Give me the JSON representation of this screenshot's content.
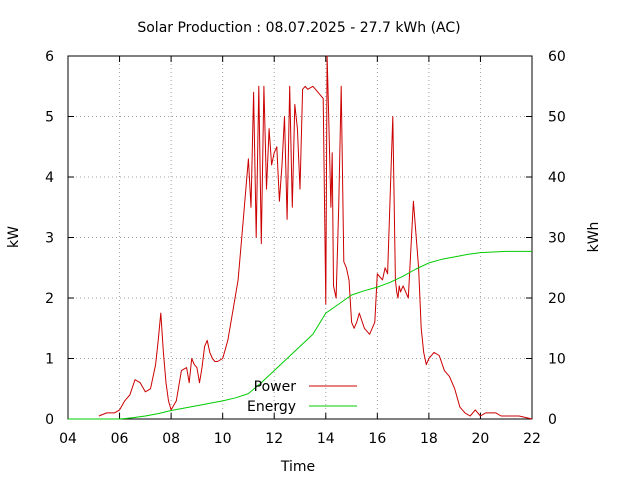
{
  "chart_data": {
    "type": "line",
    "title": "Solar Production : 08.07.2025 - 27.7 kWh (AC)",
    "xlabel": "Time",
    "ylabel": "kW",
    "y2label": "kWh",
    "xlim": [
      4,
      22
    ],
    "ylim": [
      0,
      6
    ],
    "y2lim": [
      0,
      60
    ],
    "xticks": [
      "04",
      "06",
      "08",
      "10",
      "12",
      "14",
      "16",
      "18",
      "20",
      "22"
    ],
    "yticks": [
      "0",
      "1",
      "2",
      "3",
      "4",
      "5",
      "6"
    ],
    "y2ticks": [
      "0",
      "10",
      "20",
      "30",
      "40",
      "50",
      "60"
    ],
    "grid": true,
    "legend_position": "bottom-center",
    "series": [
      {
        "name": "Power",
        "axis": "left",
        "color": "#cc0000",
        "x": [
          5.2,
          5.5,
          5.8,
          6.0,
          6.2,
          6.4,
          6.6,
          6.8,
          7.0,
          7.2,
          7.4,
          7.5,
          7.6,
          7.7,
          7.8,
          7.9,
          8.0,
          8.2,
          8.4,
          8.6,
          8.7,
          8.8,
          8.9,
          9.0,
          9.1,
          9.2,
          9.3,
          9.4,
          9.5,
          9.6,
          9.7,
          9.8,
          10.0,
          10.2,
          10.4,
          10.6,
          10.8,
          11.0,
          11.1,
          11.2,
          11.3,
          11.4,
          11.5,
          11.6,
          11.7,
          11.8,
          11.9,
          12.0,
          12.1,
          12.2,
          12.3,
          12.4,
          12.5,
          12.6,
          12.7,
          12.8,
          12.9,
          13.0,
          13.1,
          13.2,
          13.3,
          13.5,
          13.7,
          13.9,
          14.0,
          14.05,
          14.1,
          14.2,
          14.25,
          14.3,
          14.4,
          14.5,
          14.6,
          14.7,
          14.8,
          14.9,
          15.0,
          15.1,
          15.2,
          15.3,
          15.5,
          15.7,
          15.9,
          16.0,
          16.2,
          16.3,
          16.4,
          16.5,
          16.6,
          16.7,
          16.75,
          16.8,
          16.85,
          16.9,
          17.0,
          17.2,
          17.4,
          17.6,
          17.7,
          17.8,
          17.9,
          18.0,
          18.2,
          18.4,
          18.6,
          18.8,
          19.0,
          19.2,
          19.4,
          19.6,
          19.8,
          20.0,
          20.2,
          20.4,
          20.6,
          20.8,
          21.0,
          21.5,
          22.0
        ],
        "y": [
          0.05,
          0.1,
          0.1,
          0.15,
          0.3,
          0.4,
          0.65,
          0.6,
          0.45,
          0.5,
          0.9,
          1.3,
          1.75,
          1.1,
          0.6,
          0.3,
          0.15,
          0.3,
          0.8,
          0.85,
          0.6,
          1.0,
          0.9,
          0.85,
          0.6,
          0.85,
          1.2,
          1.3,
          1.1,
          1.0,
          0.95,
          0.95,
          1.0,
          1.3,
          1.8,
          2.3,
          3.3,
          4.3,
          3.5,
          5.4,
          3.0,
          5.5,
          2.9,
          5.5,
          3.8,
          4.8,
          4.2,
          4.4,
          4.5,
          3.6,
          4.2,
          5.0,
          3.3,
          5.5,
          3.5,
          5.2,
          4.8,
          3.8,
          5.45,
          5.5,
          5.45,
          5.5,
          5.4,
          5.3,
          1.9,
          6.0,
          5.2,
          3.5,
          4.4,
          2.2,
          2.0,
          3.5,
          5.5,
          2.6,
          2.5,
          2.3,
          1.6,
          1.5,
          1.6,
          1.75,
          1.5,
          1.4,
          1.6,
          2.4,
          2.3,
          2.5,
          2.4,
          3.7,
          5.0,
          2.3,
          2.1,
          2.0,
          2.2,
          2.1,
          2.2,
          2.0,
          3.6,
          2.5,
          1.5,
          1.1,
          0.9,
          1.0,
          1.1,
          1.05,
          0.8,
          0.7,
          0.5,
          0.2,
          0.1,
          0.05,
          0.15,
          0.05,
          0.1,
          0.1,
          0.1,
          0.05,
          0.05,
          0.05,
          0.0
        ]
      },
      {
        "name": "Energy",
        "axis": "right",
        "color": "#00cc00",
        "x": [
          4,
          6,
          6.5,
          7,
          7.5,
          8,
          8.5,
          9,
          9.5,
          10,
          10.5,
          11,
          11.5,
          12,
          12.5,
          13,
          13.5,
          14,
          14.5,
          15,
          15.5,
          16,
          16.5,
          17,
          17.5,
          18,
          18.5,
          19,
          19.5,
          20,
          21,
          22
        ],
        "y": [
          0,
          0,
          0.2,
          0.5,
          0.9,
          1.4,
          1.8,
          2.2,
          2.6,
          3.0,
          3.5,
          4.2,
          6.0,
          8.0,
          10.0,
          12.0,
          14.0,
          17.5,
          19.0,
          20.5,
          21.2,
          21.8,
          22.6,
          23.6,
          24.8,
          25.8,
          26.4,
          26.8,
          27.2,
          27.5,
          27.7,
          27.7
        ]
      }
    ]
  }
}
